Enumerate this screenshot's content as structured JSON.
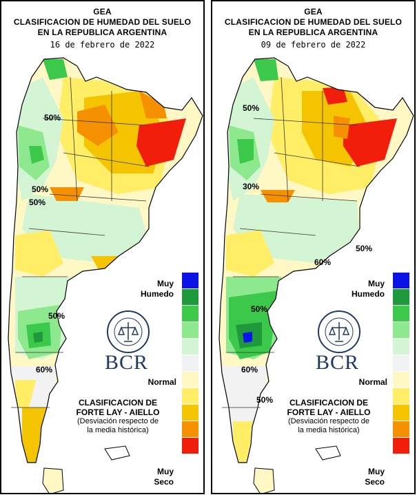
{
  "maps": [
    {
      "org": "GEA",
      "title_line1": "CLASIFICACION DE HUMEDAD DEL SUELO",
      "title_line2": "EN LA REPUBLICA ARGENTINA",
      "date": "16 de febrero de 2022",
      "contour_labels": [
        "50%",
        "50%",
        "50%",
        "60%",
        "50%"
      ]
    },
    {
      "org": "GEA",
      "title_line1": "CLASIFICACION DE HUMEDAD DEL SUELO",
      "title_line2": "EN LA REPUBLICA ARGENTINA",
      "date": "09 de febrero de 2022",
      "contour_labels": [
        "50%",
        "30%",
        "60%",
        "50%",
        "50%",
        "60%",
        "50%"
      ]
    }
  ],
  "legend": {
    "top_label": "Muy\nHumedo",
    "mid_label": "Normal",
    "bottom_label": "Muy\nSeco",
    "colors": [
      "#0a14e6",
      "#1e9a3c",
      "#3cc84a",
      "#8ee88e",
      "#d4f5d4",
      "#f2f2f2",
      "#fff7c4",
      "#ffee66",
      "#f5c400",
      "#f59000",
      "#f01e0a"
    ]
  },
  "brand": {
    "logo_text": "BOLSA DE COMERCIO DE ROSARIO",
    "name": "BCR"
  },
  "classification": {
    "line1": "CLASIFICACION DE",
    "line2": "FORTE LAY - AIELLO",
    "note1": "(Desviación respecto de",
    "note2": "la media histórica)"
  }
}
